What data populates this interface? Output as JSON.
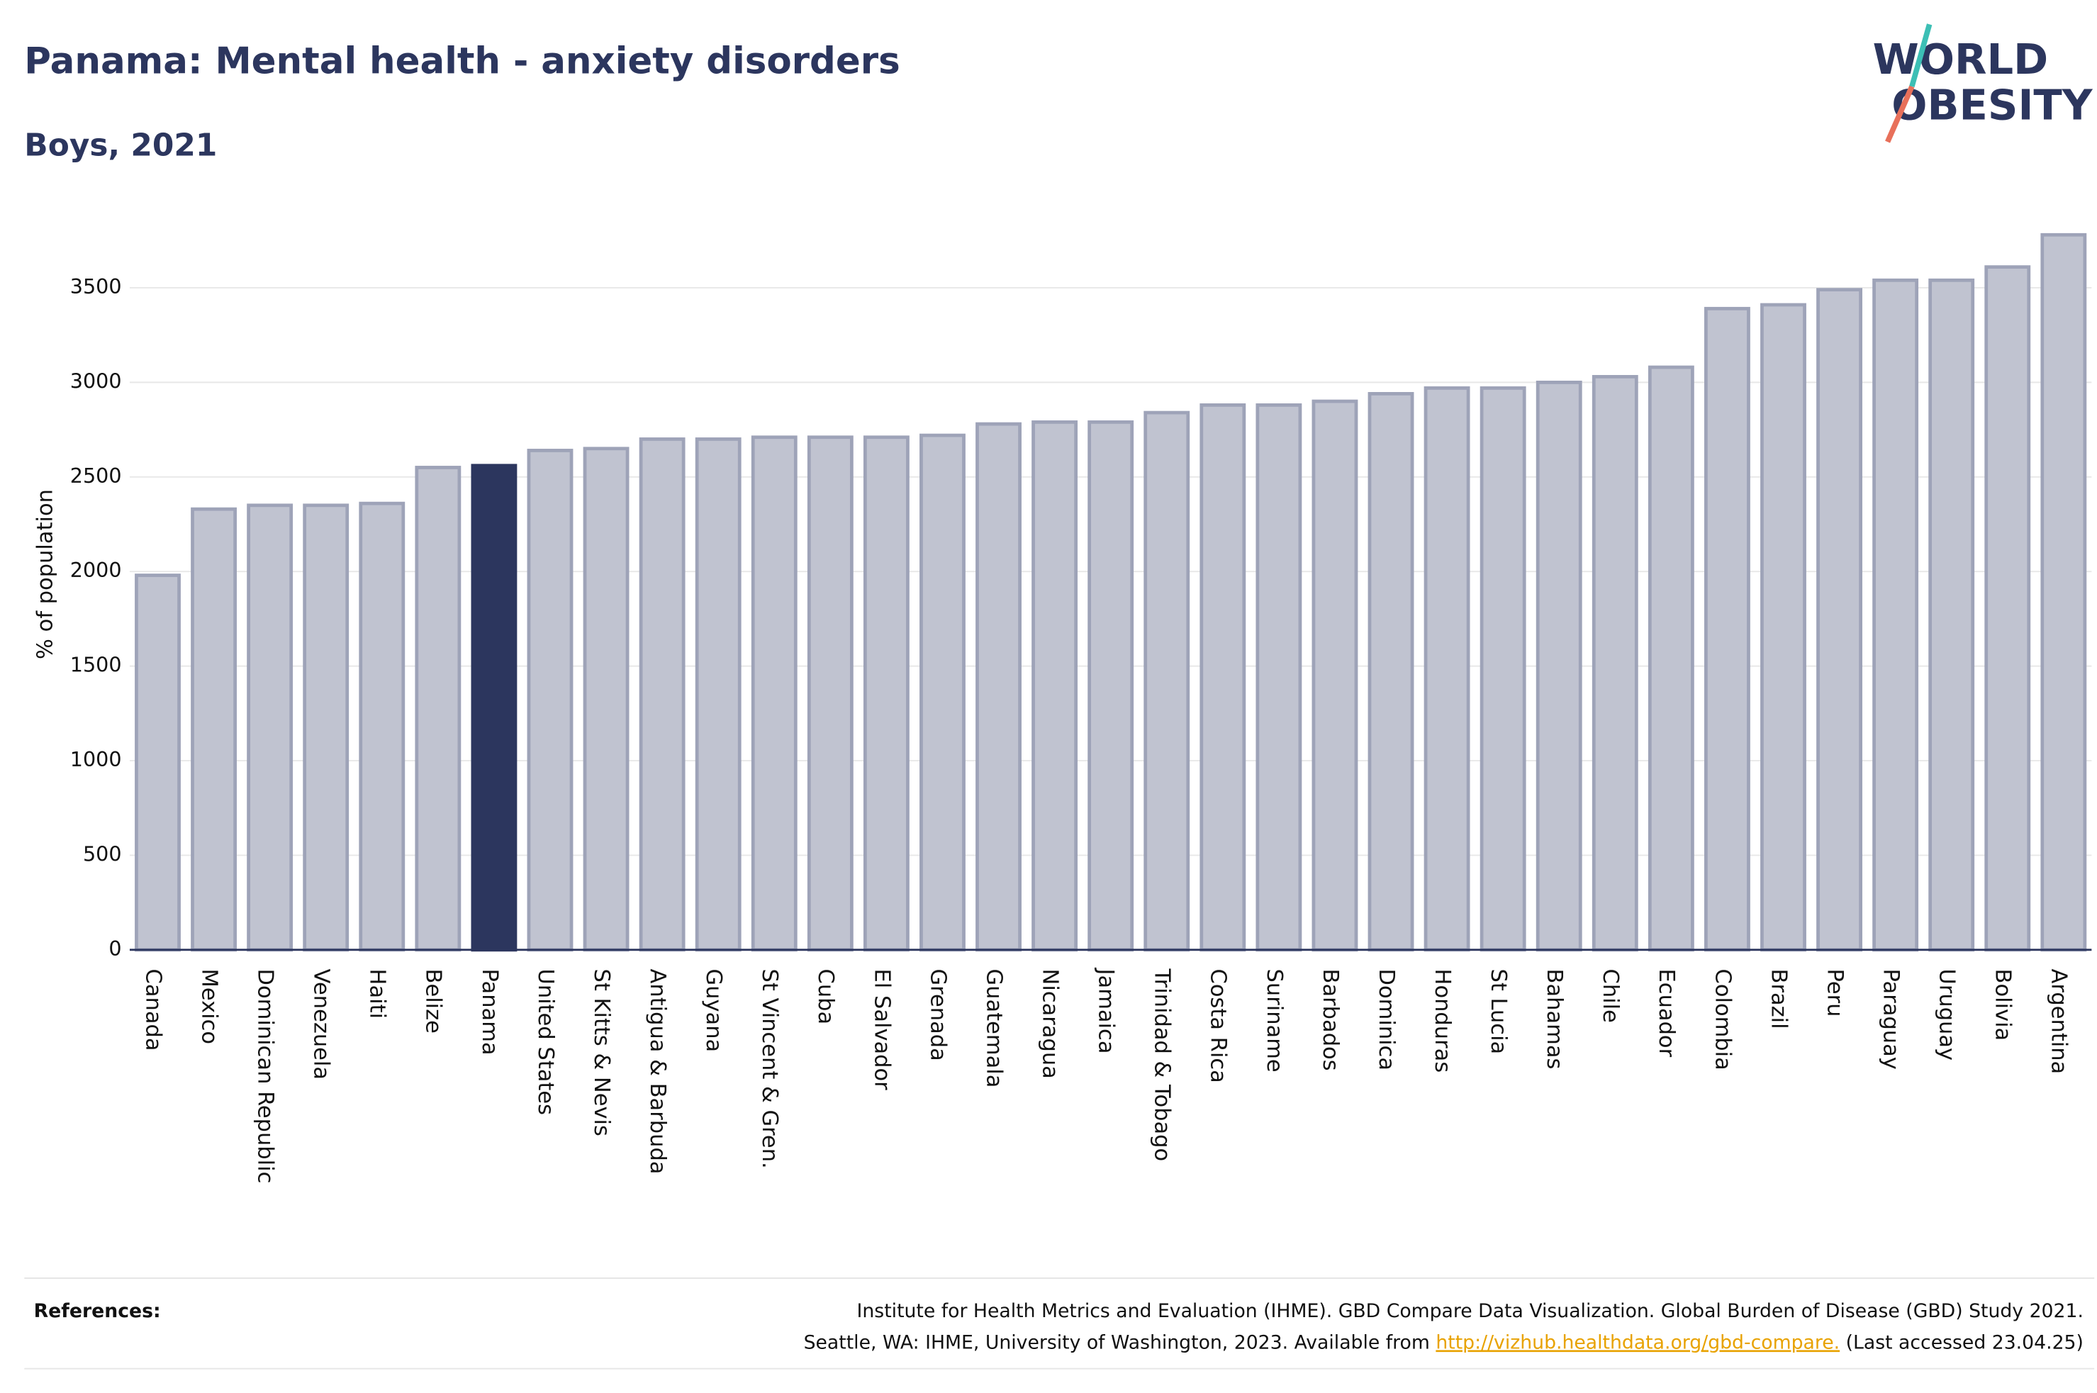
{
  "chart_data": {
    "type": "bar",
    "title": "Panama: Mental health - anxiety disorders",
    "subtitle": "Boys, 2021",
    "y_label": "% of population",
    "categories": [
      "Canada",
      "Mexico",
      "Dominican Republic",
      "Venezuela",
      "Haiti",
      "Belize",
      "Panama",
      "United States",
      "St Kitts & Nevis",
      "Antigua & Barbuda",
      "Guyana",
      "St Vincent & Gren.",
      "Cuba",
      "El Salvador",
      "Grenada",
      "Guatemala",
      "Nicaragua",
      "Jamaica",
      "Trinidad & Tobago",
      "Costa Rica",
      "Suriname",
      "Barbados",
      "Dominica",
      "Honduras",
      "St Lucia",
      "Bahamas",
      "Chile",
      "Ecuador",
      "Colombia",
      "Brazil",
      "Peru",
      "Paraguay",
      "Uruguay",
      "Bolivia",
      "Argentina"
    ],
    "values": [
      1980,
      2330,
      2350,
      2350,
      2360,
      2550,
      2560,
      2640,
      2650,
      2700,
      2700,
      2710,
      2710,
      2710,
      2720,
      2780,
      2790,
      2790,
      2840,
      2880,
      2880,
      2900,
      2940,
      2970,
      2970,
      3000,
      3030,
      3080,
      3390,
      3410,
      3490,
      3540,
      3540,
      3610,
      3780
    ],
    "color": "#c0c3d0",
    "highlight": "Panama",
    "highlight_color": "#2c365e",
    "ylim": [
      0,
      3800
    ],
    "yticks": [
      0,
      500,
      1000,
      1500,
      2000,
      2500,
      3000,
      3500
    ],
    "grid": true
  },
  "logo": {
    "line1": "WORLD",
    "line2": "OBESITY"
  },
  "references": {
    "label": "References:",
    "line1": "Institute for Health Metrics and Evaluation (IHME). GBD Compare Data Visualization. Global Burden of Disease (GBD) Study 2021.",
    "line2": "Seattle, WA: IHME, University of Washington, 2023. Available from",
    "link": "http://vizhub.healthdata.org/gbd-compare.",
    "line2_end": "(Last accessed 23.04.25)"
  }
}
